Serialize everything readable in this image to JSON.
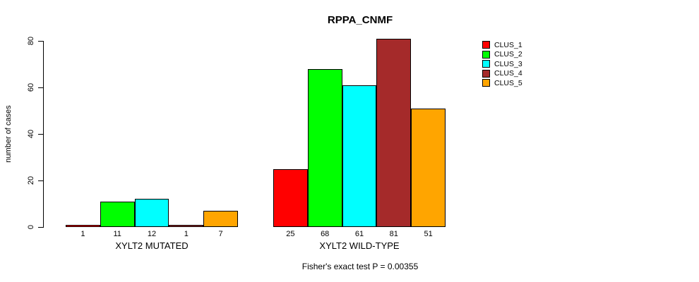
{
  "chart_data": {
    "type": "bar",
    "title": "RPPA_CNMF",
    "xlabel": "",
    "ylabel": "number of cases",
    "ylim": [
      0,
      80
    ],
    "yticks": [
      0,
      20,
      40,
      60,
      80
    ],
    "grid": false,
    "legend_position": "right",
    "categories": [
      "XYLT2 MUTATED",
      "XYLT2 WILD-TYPE"
    ],
    "series": [
      {
        "name": "CLUS_1",
        "color": "#ff0000",
        "values": [
          1,
          25
        ]
      },
      {
        "name": "CLUS_2",
        "color": "#00ff00",
        "values": [
          11,
          68
        ]
      },
      {
        "name": "CLUS_3",
        "color": "#00ffff",
        "values": [
          12,
          61
        ]
      },
      {
        "name": "CLUS_4",
        "color": "#a52a2a",
        "values": [
          1,
          81
        ]
      },
      {
        "name": "CLUS_5",
        "color": "#ffa500",
        "values": [
          7,
          51
        ]
      }
    ],
    "bar_labels": [
      [
        "1",
        "11",
        "12",
        "1",
        "7"
      ],
      [
        "25",
        "68",
        "61",
        "81",
        "51"
      ]
    ],
    "annotation": "Fisher's exact test P = 0.00355"
  }
}
